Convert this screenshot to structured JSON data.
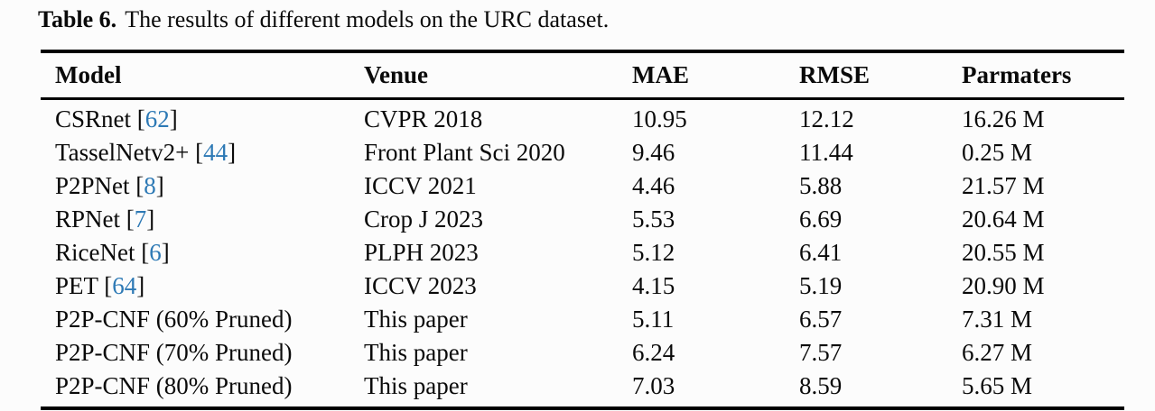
{
  "caption": {
    "label": "Table 6.",
    "text": "The results of different models on the URC dataset."
  },
  "colors": {
    "citation": "#2d79b5",
    "text": "#0a0a0a",
    "background": "#fcfcfc",
    "rule": "#000000"
  },
  "chart_data": {
    "type": "table",
    "title": "Table 6. The results of different models on the URC dataset.",
    "columns": [
      "Model",
      "Venue",
      "MAE",
      "RMSE",
      "Parmaters"
    ],
    "rows": [
      {
        "model": "CSRnet",
        "ref": "62",
        "venue": "CVPR 2018",
        "mae": "10.95",
        "rmse": "12.12",
        "params": "16.26 M"
      },
      {
        "model": "TasselNetv2+",
        "ref": "44",
        "venue": "Front Plant Sci 2020",
        "mae": "9.46",
        "rmse": "11.44",
        "params": "0.25 M"
      },
      {
        "model": "P2PNet",
        "ref": "8",
        "venue": "ICCV 2021",
        "mae": "4.46",
        "rmse": "5.88",
        "params": "21.57 M"
      },
      {
        "model": "RPNet",
        "ref": "7",
        "venue": "Crop J 2023",
        "mae": "5.53",
        "rmse": "6.69",
        "params": "20.64 M"
      },
      {
        "model": "RiceNet",
        "ref": "6",
        "venue": "PLPH 2023",
        "mae": "5.12",
        "rmse": "6.41",
        "params": "20.55 M"
      },
      {
        "model": "PET",
        "ref": "64",
        "venue": "ICCV 2023",
        "mae": "4.15",
        "rmse": "5.19",
        "params": "20.90 M"
      },
      {
        "model": "P2P-CNF (60% Pruned)",
        "ref": null,
        "venue": "This paper",
        "mae": "5.11",
        "rmse": "6.57",
        "params": "7.31 M"
      },
      {
        "model": "P2P-CNF (70% Pruned)",
        "ref": null,
        "venue": "This paper",
        "mae": "6.24",
        "rmse": "7.57",
        "params": "6.27 M"
      },
      {
        "model": "P2P-CNF (80% Pruned)",
        "ref": null,
        "venue": "This paper",
        "mae": "7.03",
        "rmse": "8.59",
        "params": "5.65 M"
      }
    ]
  }
}
